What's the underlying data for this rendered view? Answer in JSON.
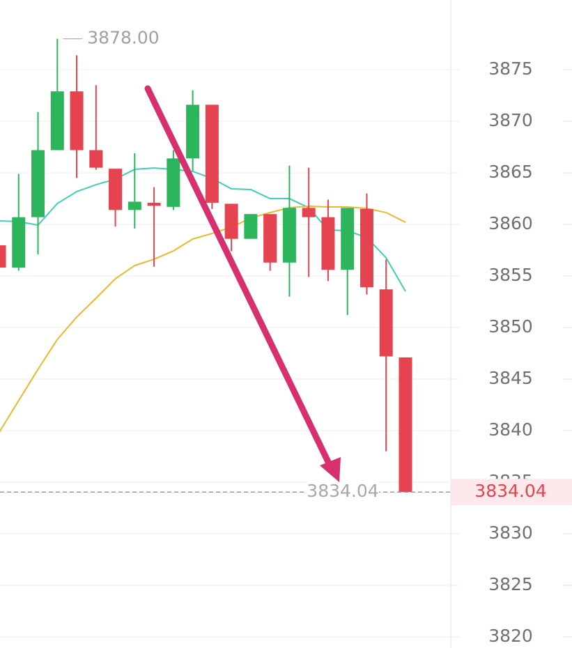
{
  "chart_data": {
    "type": "candlestick",
    "up_color": "#2db55d",
    "down_color": "#e5434f",
    "open": [
      3857.97,
      3855.8,
      3860.7,
      3867.2,
      3872.9,
      3867.2,
      3865.4,
      3861.4,
      3862.1,
      3861.7,
      3866.4,
      3871.6,
      3862.0,
      3858.6,
      3861.0,
      3856.3,
      3861.6,
      3860.7,
      3855.6,
      3861.5,
      3853.7,
      3847.1
    ],
    "high": [
      3861.1,
      3864.9,
      3870.9,
      3878.0,
      3876.4,
      3873.5,
      3865.4,
      3866.9,
      3863.6,
      3867.2,
      3873.0,
      3871.6,
      3862.0,
      3861.0,
      3861.0,
      3865.7,
      3865.5,
      3862.4,
      3861.6,
      3863.0,
      3856.6,
      3847.1
    ],
    "low": [
      3853.4,
      3855.5,
      3857.1,
      3867.2,
      3864.5,
      3865.3,
      3859.8,
      3859.6,
      3855.9,
      3861.4,
      3865.2,
      3861.5,
      3857.4,
      3858.6,
      3855.5,
      3853.0,
      3854.9,
      3854.5,
      3851.2,
      3853.2,
      3838.0,
      3834.04
    ],
    "close": [
      3855.81,
      3860.7,
      3867.2,
      3872.9,
      3867.2,
      3865.5,
      3861.4,
      3862.2,
      3861.8,
      3866.4,
      3871.6,
      3862.1,
      3858.6,
      3861.0,
      3856.3,
      3861.6,
      3860.7,
      3855.6,
      3861.6,
      3853.9,
      3847.2,
      3834.04
    ],
    "lines": [
      {
        "color": "#3ecfb8",
        "values": [
          3860.34,
          3860.27,
          3859.93,
          3862.03,
          3863.18,
          3863.85,
          3864.39,
          3865.34,
          3865.47,
          3865.34,
          3865.14,
          3864.46,
          3863.45,
          3863.38,
          3862.5,
          3862.5,
          3861.62,
          3859.46,
          3859.39,
          3858.72,
          3856.76,
          3853.51
        ]
      },
      {
        "color": "#e8b92b",
        "values": [
          3839.86,
          3842.91,
          3845.95,
          3848.85,
          3851.01,
          3852.84,
          3854.73,
          3856.01,
          3856.62,
          3857.43,
          3858.58,
          3859.12,
          3859.73,
          3860.61,
          3861.15,
          3861.62,
          3861.76,
          3861.69,
          3861.69,
          3861.55,
          3861.15,
          3860.2
        ]
      }
    ],
    "ylim": [
      3818.92,
      3881.76
    ],
    "yticks": [
      3820,
      3825,
      3830,
      3835,
      3840,
      3845,
      3850,
      3855,
      3860,
      3865,
      3870,
      3875
    ],
    "grid": true,
    "high_marker": {
      "value": 3878,
      "label": "3878.00"
    },
    "last_price": 3834.04
  }
}
